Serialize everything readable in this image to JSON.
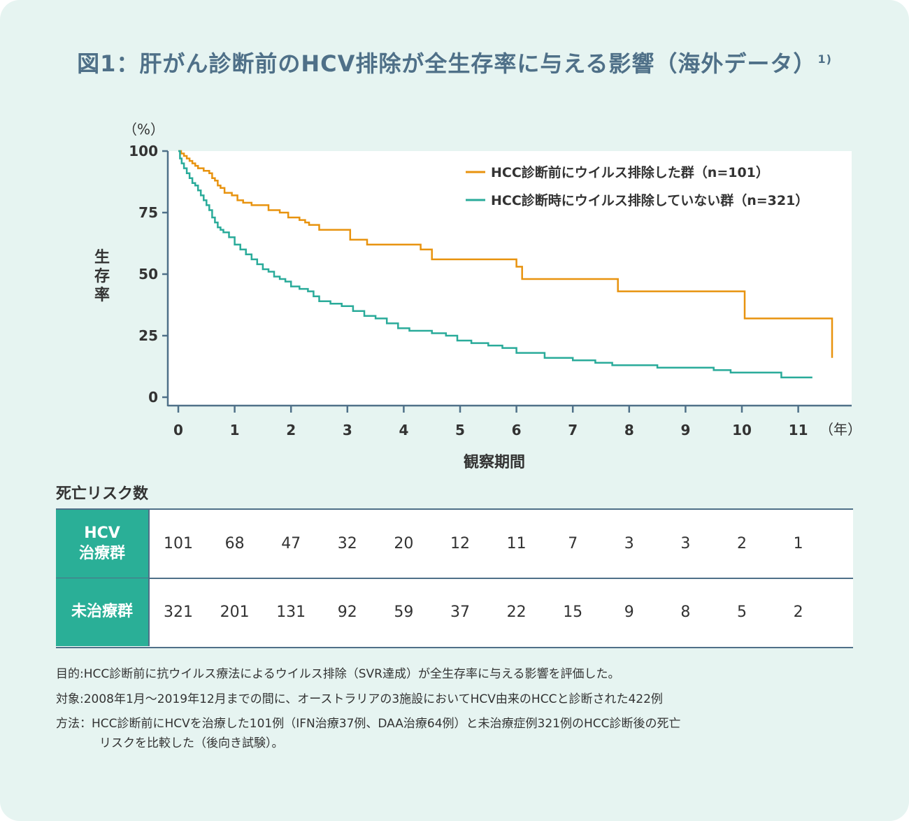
{
  "title": "図1：肝がん診断前のHCV排除が全生存率に与える影響（海外データ）",
  "title_ref": "1)",
  "chart_data": {
    "type": "line",
    "step": true,
    "ylabel_unit": "（%）",
    "ylabel": "生存率",
    "xlabel": "観察期間",
    "x_unit": "（年）",
    "xlim": [
      0,
      11.8
    ],
    "ylim": [
      0,
      100
    ],
    "x_ticks": [
      "0",
      "1",
      "2",
      "3",
      "4",
      "5",
      "6",
      "7",
      "8",
      "9",
      "10",
      "11"
    ],
    "y_ticks": [
      "0",
      "25",
      "50",
      "75",
      "100"
    ],
    "legend_position": "top-right",
    "series": [
      {
        "name": "HCC診断前にウイルス排除した群（n=101）",
        "color": "#e8930f",
        "x": [
          0,
          0.05,
          0.1,
          0.15,
          0.2,
          0.25,
          0.3,
          0.35,
          0.45,
          0.55,
          0.6,
          0.65,
          0.7,
          0.75,
          0.82,
          0.95,
          1.05,
          1.15,
          1.3,
          1.6,
          1.8,
          1.95,
          2.15,
          2.25,
          2.32,
          2.5,
          3.05,
          3.35,
          4.3,
          4.5,
          6.0,
          6.1,
          7.8,
          10.05,
          11.6
        ],
        "y": [
          100,
          99,
          98,
          97,
          96,
          95,
          94,
          93,
          92,
          91,
          89,
          88,
          86,
          85,
          83,
          82,
          80,
          79,
          78,
          76,
          75,
          73,
          72,
          71,
          70,
          68,
          64,
          62,
          60,
          56,
          53,
          48,
          43,
          32,
          16
        ]
      },
      {
        "name": "HCC診断時にウイルス排除していない群（n=321）",
        "color": "#2aab9a",
        "x": [
          0,
          0.03,
          0.06,
          0.1,
          0.15,
          0.2,
          0.25,
          0.3,
          0.35,
          0.4,
          0.45,
          0.5,
          0.55,
          0.6,
          0.65,
          0.7,
          0.75,
          0.8,
          0.9,
          1.0,
          1.1,
          1.2,
          1.3,
          1.4,
          1.5,
          1.6,
          1.7,
          1.8,
          1.9,
          2.0,
          2.15,
          2.3,
          2.4,
          2.5,
          2.7,
          2.9,
          3.1,
          3.3,
          3.5,
          3.7,
          3.9,
          4.1,
          4.5,
          4.75,
          4.95,
          5.2,
          5.5,
          5.75,
          6.0,
          6.5,
          7.0,
          7.4,
          7.7,
          8.5,
          9.5,
          9.8,
          10.1,
          10.7,
          11.25
        ],
        "y": [
          100,
          97,
          95,
          93,
          91,
          89,
          87,
          86,
          84,
          82,
          80,
          78,
          76,
          73,
          71,
          69,
          68,
          67,
          65,
          62,
          60,
          58,
          56,
          54,
          52,
          51,
          49,
          48,
          47,
          45,
          44,
          43,
          41,
          39,
          38,
          37,
          35,
          33,
          32,
          30,
          28,
          27,
          26,
          25,
          23,
          22,
          21,
          20,
          18,
          16,
          15,
          14,
          13,
          12,
          11,
          10,
          10,
          8,
          8
        ]
      }
    ]
  },
  "risk": {
    "title": "死亡リスク数",
    "rows": [
      {
        "label_top": "HCV",
        "label_bottom": "治療群",
        "values": [
          "101",
          "68",
          "47",
          "32",
          "20",
          "12",
          "11",
          "7",
          "3",
          "3",
          "2",
          "1"
        ]
      },
      {
        "label_top": "",
        "label_bottom": "未治療群",
        "values": [
          "321",
          "201",
          "131",
          "92",
          "59",
          "37",
          "22",
          "15",
          "9",
          "8",
          "5",
          "2"
        ]
      }
    ]
  },
  "notes": {
    "purpose": "目的:HCC診断前に抗ウイルス療法によるウイルス排除（SVR達成）が全生存率に与える影響を評価した。",
    "subjects": "対象:2008年1月〜2019年12月までの間に、オーストラリアの3施設においてHCV由来のHCCと診断された422例",
    "method_1": "方法：HCC診断前にHCVを治療した101例（IFN治療37例、DAA治療64例）と未治療症例321例のHCC診断後の死亡",
    "method_2": "リスクを比較した（後向き試験）。"
  }
}
